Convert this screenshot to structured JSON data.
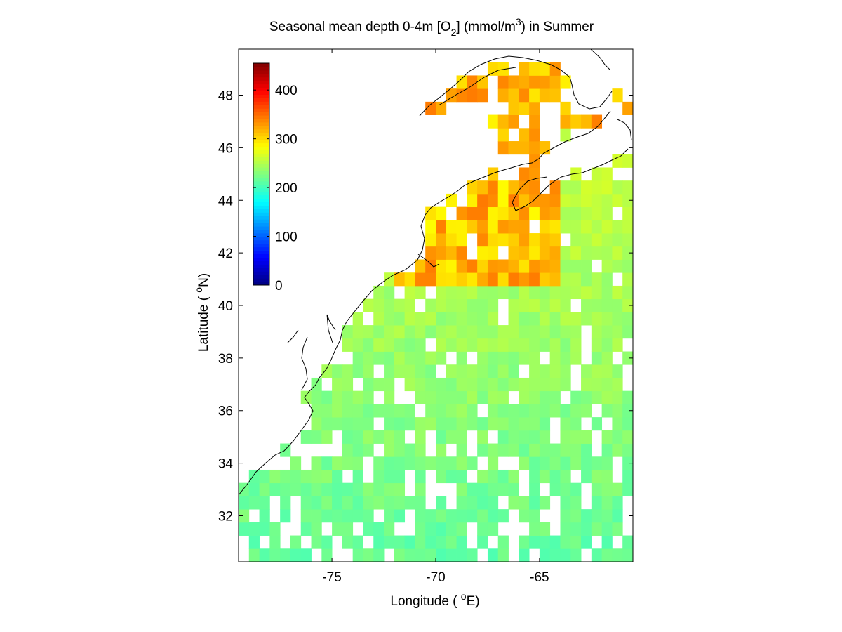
{
  "chart_data": {
    "type": "heatmap",
    "title_parts": {
      "main": "Seasonal mean depth 0-4m [O",
      "sub": "2",
      "mid": "] (mmol/m",
      "sup": "3",
      "tail": ") in  Summer"
    },
    "xlabel_parts": {
      "pre": "Longitude ( ",
      "sup": "o",
      "post": "E)"
    },
    "ylabel_parts": {
      "pre": "Latitude ( ",
      "sup": "o",
      "post": "N)"
    },
    "xlim": [
      -79.5,
      -60.5
    ],
    "ylim": [
      30.25,
      49.75
    ],
    "x_ticks": [
      -75,
      -70,
      -65
    ],
    "y_ticks": [
      32,
      34,
      36,
      38,
      40,
      42,
      44,
      46,
      48
    ],
    "colorbar": {
      "colormap": "jet",
      "range": [
        0,
        455
      ],
      "ticks": [
        0,
        100,
        200,
        300,
        400
      ],
      "location": "top-left inside axes"
    },
    "cell_size_deg": 0.5,
    "grid": false,
    "coastline": "black outline of US east coast, Gulf of Maine, Nova Scotia, Gulf of St. Lawrence"
  }
}
